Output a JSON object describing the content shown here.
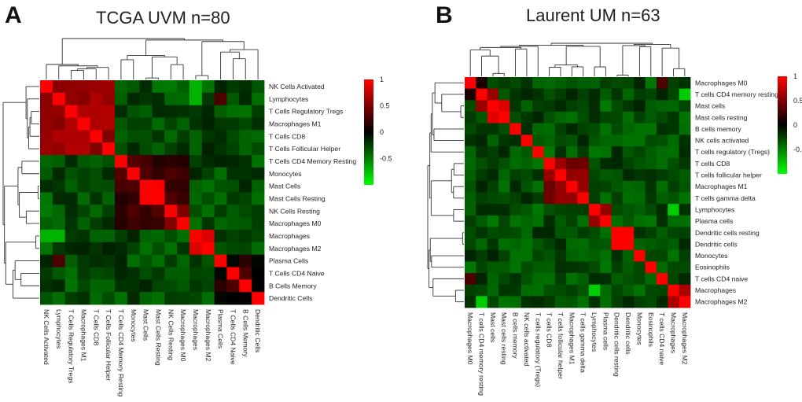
{
  "panels": [
    {
      "letter": "A",
      "title": "TCGA UVM n=80",
      "labels": [
        "NK Cells Activated",
        "Lymphocytes",
        "T Cells Regulatory Tregs",
        "Macrophages M1",
        "T Cells CD8",
        "T Cells Follicular Helper",
        "T Cells CD4 Memory Resting",
        "Monocytes",
        "Mast Cells",
        "Mast Cells Resting",
        "NK Cells Resting",
        "Macrophages M0",
        "Macrophages",
        "Macrophages M2",
        "Plasma Cells",
        "T Cells CD4 Naive",
        "B Cells Memory",
        "Dendritic Cells"
      ]
    },
    {
      "letter": "B",
      "title": "Laurent UM n=63",
      "labels": [
        "Macrophages M0",
        "T cells CD4 memory resting",
        "Mast  cells",
        "Mast cells resting",
        "B cells memory",
        "NK cells activated",
        "T cells regulatory (Tregs)",
        "T cells CD8",
        "T cells follicular helper",
        "Macrophages M1",
        "T cells gamma delta",
        "Lymphocytes",
        "Plasma cells",
        "Dendritic cells resting",
        "Dendritic cells",
        "Monocytes",
        "Eosinophils",
        "T cells CD4 naive",
        "Macrophages",
        "Macrophages M2"
      ]
    }
  ],
  "legend": {
    "ticks": [
      "1",
      "0.5",
      "0",
      "-0.5"
    ]
  },
  "colors": {
    "high": "#ff0000",
    "mid": "#000000",
    "low": "#00ff00"
  },
  "chart_data": [
    {
      "type": "heatmap",
      "title": "TCGA UVM n=80",
      "value_range": [
        -1,
        1
      ],
      "rows": [
        "NK Cells Activated",
        "Lymphocytes",
        "T Cells Regulatory Tregs",
        "Macrophages M1",
        "T Cells CD8",
        "T Cells Follicular Helper",
        "T Cells CD4 Memory Resting",
        "Monocytes",
        "Mast Cells",
        "Mast Cells Resting",
        "NK Cells Resting",
        "Macrophages M0",
        "Macrophages",
        "Macrophages M2",
        "Plasma Cells",
        "T Cells CD4 Naive",
        "B Cells Memory",
        "Dendritic Cells"
      ],
      "cluster_blocks": [
        {
          "start": 0,
          "end": 5,
          "within": 0.6
        },
        {
          "start": 6,
          "end": 11,
          "within": 0.25
        },
        {
          "start": 8,
          "end": 9,
          "within": 1.0
        },
        {
          "start": 12,
          "end": 13,
          "within": 0.9
        },
        {
          "start": 14,
          "end": 17,
          "within": 0.05
        }
      ],
      "background": -0.3,
      "notable_values": [
        {
          "r": 0,
          "c": 12,
          "v": -0.7
        },
        {
          "r": 1,
          "c": 12,
          "v": -0.7
        },
        {
          "r": 11,
          "c": 10,
          "v": 0.5
        },
        {
          "r": 14,
          "c": 1,
          "v": 0.3
        },
        {
          "r": 16,
          "c": 15,
          "v": 0.3
        }
      ]
    },
    {
      "type": "heatmap",
      "title": "Laurent UM n=63",
      "value_range": [
        -1,
        1
      ],
      "rows": [
        "Macrophages M0",
        "T cells CD4 memory resting",
        "Mast  cells",
        "Mast cells resting",
        "B cells memory",
        "NK cells activated",
        "T cells regulatory (Tregs)",
        "T cells CD8",
        "T cells follicular helper",
        "Macrophages M1",
        "T cells gamma delta",
        "Lymphocytes",
        "Plasma cells",
        "Dendritic cells resting",
        "Dendritic cells",
        "Monocytes",
        "Eosinophils",
        "T cells CD4 naive",
        "Macrophages",
        "Macrophages M2"
      ],
      "cluster_blocks": [
        {
          "start": 2,
          "end": 3,
          "within": 1.0
        },
        {
          "start": 7,
          "end": 10,
          "within": 0.55
        },
        {
          "start": 11,
          "end": 12,
          "within": 0.5
        },
        {
          "start": 13,
          "end": 14,
          "within": 1.0
        },
        {
          "start": 18,
          "end": 19,
          "within": 0.75
        }
      ],
      "background": -0.3,
      "notable_values": [
        {
          "r": 0,
          "c": 1,
          "v": 0.1
        },
        {
          "r": 1,
          "c": 2,
          "v": 0.4
        },
        {
          "r": 0,
          "c": 17,
          "v": 0.3
        },
        {
          "r": 11,
          "c": 18,
          "v": -0.8
        },
        {
          "r": 1,
          "c": 19,
          "v": -0.8
        },
        {
          "r": 2,
          "c": 1,
          "v": 0.6
        }
      ]
    }
  ]
}
